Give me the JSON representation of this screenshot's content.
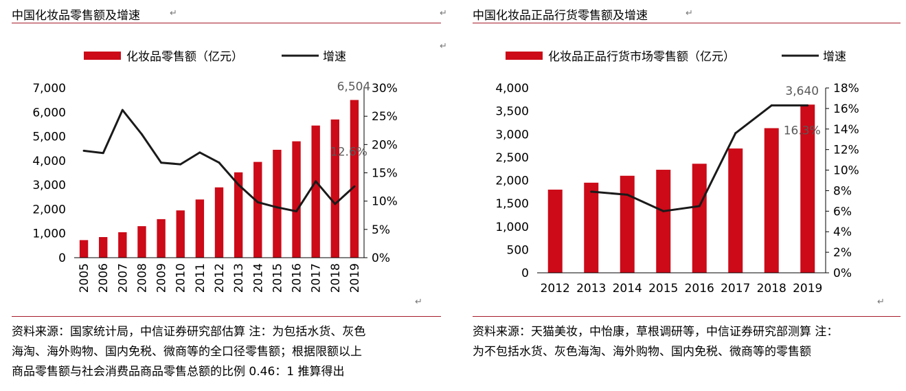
{
  "left_panel": {
    "title": "中国化妆品零售额及增速",
    "source_lines": [
      "资料来源：国家统计局，中信证券研究部估算 注：为包括水货、灰色",
      "海淘、海外购物、国内免税、微商等的全口径零售额；根据限额以上",
      "商品零售额与社会消费品商品零售总额的比例 0.46：1 推算得出"
    ]
  },
  "right_panel": {
    "title": "中国化妆品正品行货零售额及增速",
    "source_lines": [
      "资料来源：天猫美妆，中怡康，草根调研等，中信证券研究部测算 注：",
      "为不包括水货、灰色海淘、海外购物、国内免税、微商等的零售额"
    ]
  },
  "colors": {
    "bar": "#cc0a18",
    "line": "#1a1a1a",
    "rule": "#a51b2a"
  },
  "icons": {
    "para_mark": "↵"
  },
  "chart_data": [
    {
      "type": "bar",
      "categories": [
        "2005",
        "2006",
        "2007",
        "2008",
        "2009",
        "2010",
        "2011",
        "2012",
        "2013",
        "2014",
        "2015",
        "2016",
        "2017",
        "2018",
        "2019"
      ],
      "series": [
        {
          "name": "化妆品零售额（亿元）",
          "type": "bar",
          "axis": "left",
          "values": [
            725,
            850,
            1050,
            1300,
            1590,
            1950,
            2400,
            2900,
            3520,
            3950,
            4450,
            4800,
            5450,
            5700,
            6504
          ]
        },
        {
          "name": "增速",
          "type": "line",
          "axis": "right",
          "values": [
            0.189,
            0.185,
            0.261,
            0.218,
            0.168,
            0.165,
            0.186,
            0.168,
            0.129,
            0.098,
            0.089,
            0.082,
            0.135,
            0.095,
            0.126
          ]
        }
      ],
      "annotations": [
        "6,504",
        "12.6%"
      ],
      "ylim_left": [
        0,
        7000
      ],
      "left_ticks": [
        "0",
        "1,000",
        "2,000",
        "3,000",
        "4,000",
        "5,000",
        "6,000",
        "7,000"
      ],
      "ylim_right": [
        0,
        0.3
      ],
      "right_ticks": [
        "0%",
        "5%",
        "10%",
        "15%",
        "20%",
        "25%",
        "30%"
      ],
      "x_labels_rotated": true,
      "legend": "top",
      "grid": false
    },
    {
      "type": "bar",
      "categories": [
        "2012",
        "2013",
        "2014",
        "2015",
        "2016",
        "2017",
        "2018",
        "2019"
      ],
      "series": [
        {
          "name": "化妆品正品行货市场零售额（亿元）",
          "type": "bar",
          "axis": "left",
          "values": [
            1800,
            1950,
            2100,
            2230,
            2360,
            2690,
            3130,
            3640
          ]
        },
        {
          "name": "增速",
          "type": "line",
          "axis": "right",
          "values": [
            null,
            0.079,
            0.076,
            0.06,
            0.065,
            0.136,
            0.163,
            0.163
          ]
        }
      ],
      "annotations": [
        "3,640",
        "16.3%"
      ],
      "ylim_left": [
        0,
        4000
      ],
      "left_ticks": [
        "0",
        "500",
        "1,000",
        "1,500",
        "2,000",
        "2,500",
        "3,000",
        "3,500",
        "4,000"
      ],
      "ylim_right": [
        0,
        0.18
      ],
      "right_ticks": [
        "0%",
        "2%",
        "4%",
        "6%",
        "8%",
        "10%",
        "12%",
        "14%",
        "16%",
        "18%"
      ],
      "x_labels_rotated": false,
      "legend": "top",
      "grid": false
    }
  ]
}
